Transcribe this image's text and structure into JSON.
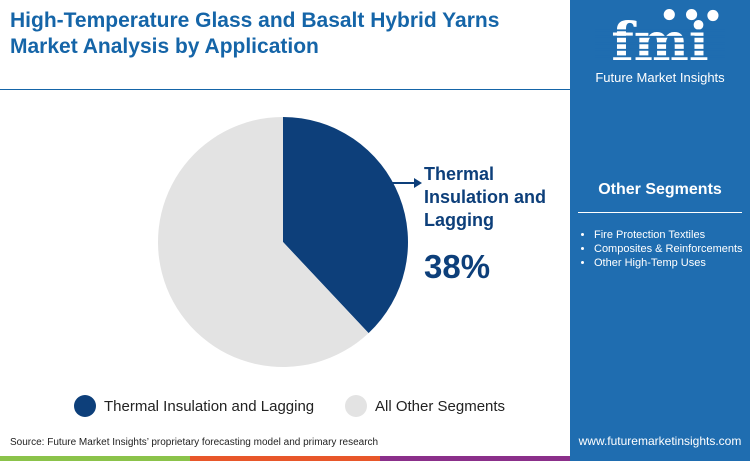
{
  "title": "High-Temperature Glass and Basalt Hybrid Yarns Market Analysis by Application",
  "brand": {
    "logo_letters": "fmi",
    "name": "Future Market Insights",
    "url": "www.futuremarketinsights.com",
    "panel_color": "#1f6db0"
  },
  "other_segments": {
    "title": "Other Segments",
    "items": [
      "Fire Protection Textiles",
      "Composites & Reinforcements",
      "Other High-Temp Uses"
    ]
  },
  "chart_data": {
    "type": "pie",
    "start": "top, clockwise",
    "slices": [
      {
        "label": "Thermal Insulation and Lagging",
        "value": 38,
        "color": "#0d3f7a"
      },
      {
        "label": "All Other Segments",
        "value": 62,
        "color": "#e3e3e3"
      }
    ],
    "callout": {
      "label": "Thermal Insulation and Lagging",
      "value_label": "38%"
    },
    "legend_position": "bottom"
  },
  "source": "Source: Future Market Insights’ proprietary forecasting model and primary research",
  "stripe_colors": [
    "#8bc34a",
    "#e8572a",
    "#8b2f8a"
  ]
}
